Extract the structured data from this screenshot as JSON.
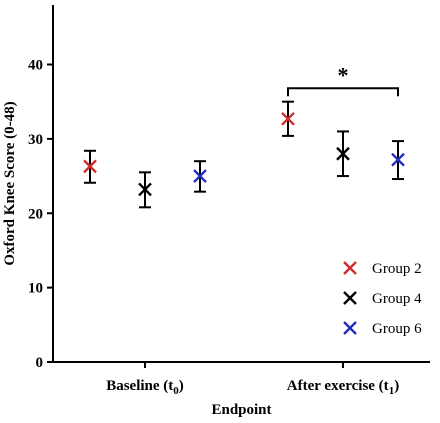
{
  "chart_data": {
    "type": "scatter",
    "title": "",
    "xlabel": "Endpoint",
    "ylabel": "Oxford Knee Score (0-48)",
    "ylim": [
      0,
      48
    ],
    "yticks": [
      0,
      10,
      20,
      30,
      40
    ],
    "categories": [
      {
        "main": "Baseline (t",
        "sub": "0",
        "close": ")"
      },
      {
        "main": "After exercise (t",
        "sub": "1",
        "close": ")"
      }
    ],
    "series": [
      {
        "name": "Group 2",
        "color": "#d22b2b",
        "values": [
          26.3,
          32.7
        ],
        "error_low": [
          24.1,
          30.4
        ],
        "error_high": [
          28.4,
          35.0
        ]
      },
      {
        "name": "Group 4",
        "color": "#000000",
        "values": [
          23.2,
          28.0
        ],
        "error_low": [
          20.8,
          25.0
        ],
        "error_high": [
          25.5,
          31.0
        ]
      },
      {
        "name": "Group 6",
        "color": "#1f2bbf",
        "values": [
          25.0,
          27.2
        ],
        "error_low": [
          22.9,
          24.6
        ],
        "error_high": [
          27.0,
          29.7
        ]
      }
    ],
    "legend_position": "bottom-right",
    "annotations": [
      {
        "text": "*",
        "category_index": 1,
        "from_series": 0,
        "to_series": 2,
        "y": 36.8
      }
    ],
    "grid": false
  }
}
